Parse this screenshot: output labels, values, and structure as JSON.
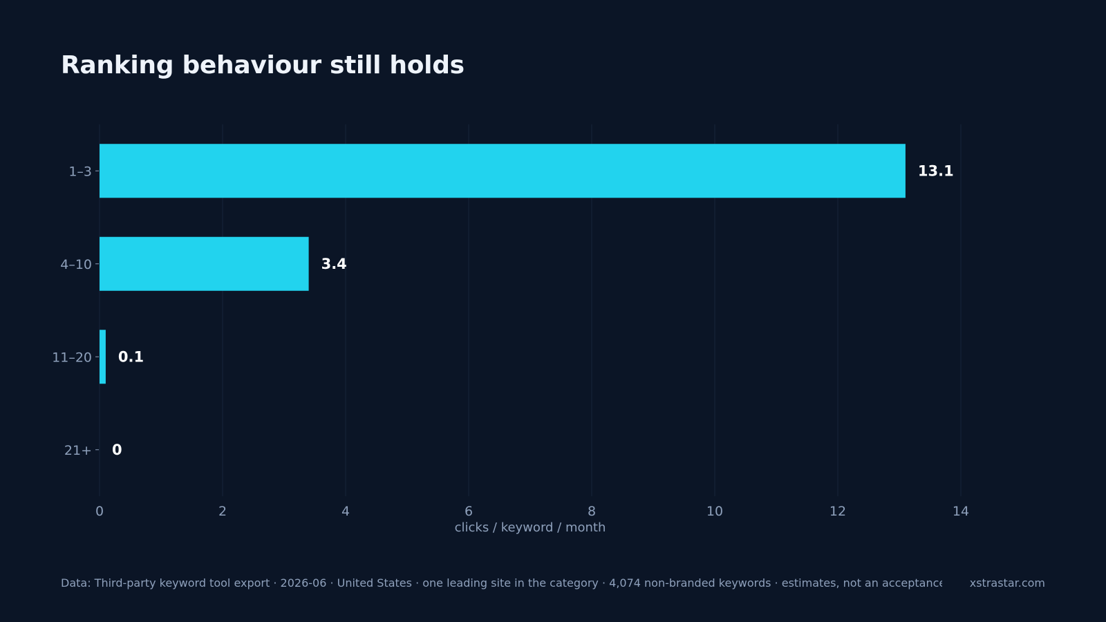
{
  "title": "Ranking behaviour still holds",
  "footer": {
    "source": "Data: Third-party keyword tool export · 2026-06 · United States · one leading site in the category · 4,074 non-branded keywords · estimates, not an acceptance baseline",
    "brand": "xstrastar.com"
  },
  "colors": {
    "background": "#0b1526",
    "bar": "#22d3ee",
    "grid": "#17253a",
    "tick_text": "#8ea0bb",
    "value_text": "#ffffff"
  },
  "chart_data": {
    "type": "bar",
    "orientation": "horizontal",
    "categories": [
      "1–3",
      "4–10",
      "11–20",
      "21+"
    ],
    "values": [
      13.1,
      3.4,
      0.1,
      0
    ],
    "value_labels": [
      "13.1",
      "3.4",
      "0.1",
      "0"
    ],
    "title": "Ranking behaviour still holds",
    "xlabel": "clicks / keyword / month",
    "ylabel": "",
    "xlim": [
      0,
      14
    ],
    "xticks": [
      0,
      2,
      4,
      6,
      8,
      10,
      12,
      14
    ],
    "grid": "vertical"
  }
}
